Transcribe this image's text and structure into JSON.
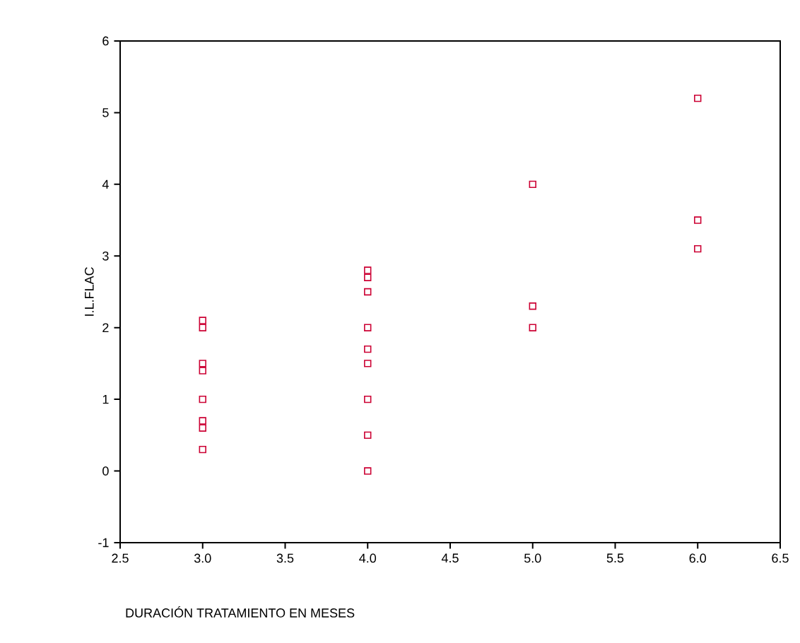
{
  "chart_data": {
    "type": "scatter",
    "xlabel": "DURACIÓN TRATAMIENTO EN MESES",
    "ylabel": "I.L.FLAC",
    "x": [
      3,
      3,
      3,
      3,
      3,
      3,
      3,
      3,
      4,
      4,
      4,
      4,
      4,
      4,
      4,
      4,
      4,
      5,
      5,
      5,
      6,
      6,
      6
    ],
    "values": [
      2.1,
      2.0,
      1.5,
      1.4,
      1.0,
      0.7,
      0.6,
      0.3,
      2.8,
      2.7,
      2.5,
      2.0,
      1.7,
      1.5,
      1.0,
      0.5,
      0,
      4.0,
      2.3,
      2.0,
      5.2,
      3.5,
      3.1
    ],
    "color": "#cc0033",
    "marker": "square",
    "xlim": [
      2.5,
      6.5
    ],
    "xticks": [
      {
        "value": 2.5,
        "label": "2.5"
      },
      {
        "value": 3,
        "label": "3.0"
      },
      {
        "value": 3.5,
        "label": "3.5"
      },
      {
        "value": 4,
        "label": "4.0"
      },
      {
        "value": 4.5,
        "label": "4.5"
      },
      {
        "value": 5,
        "label": "5.0"
      },
      {
        "value": 5.5,
        "label": "5.5"
      },
      {
        "value": 6,
        "label": "6.0"
      },
      {
        "value": 6.5,
        "label": "6.5"
      }
    ],
    "ylim": [
      -1,
      6
    ],
    "yticks": [
      -1,
      0,
      1,
      2,
      3,
      4,
      5,
      6
    ]
  }
}
